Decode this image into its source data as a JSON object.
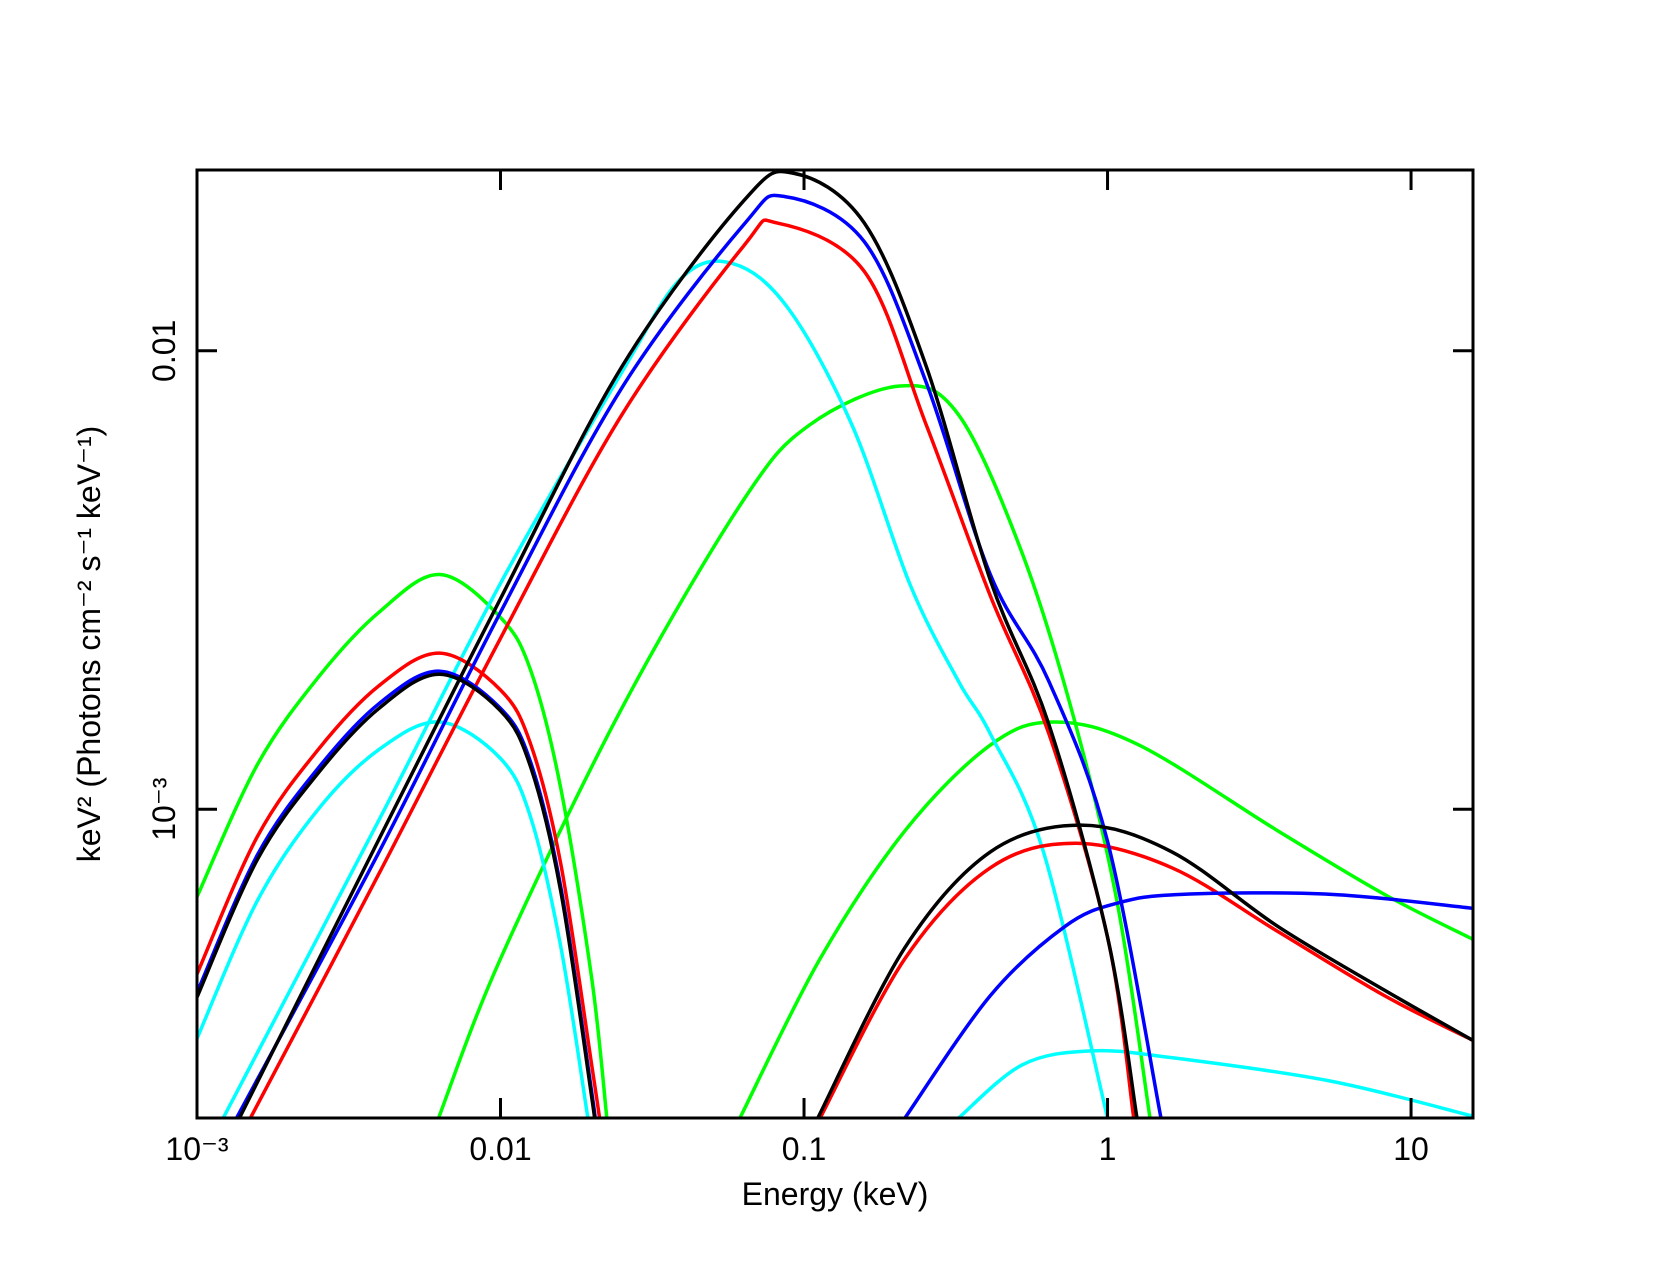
{
  "chart_data": {
    "type": "line",
    "xlabel": "Energy (keV)",
    "ylabel": "keV² (Photons cm⁻² s⁻¹ keV⁻¹)",
    "xscale": "log",
    "yscale": "log",
    "xlim": [
      0.001,
      16
    ],
    "ylim": [
      0.000212,
      0.0248
    ],
    "xticks": [
      {
        "value": 0.001,
        "label": "10⁻³"
      },
      0.01,
      0.1,
      1,
      10
    ],
    "yticks": [
      {
        "value": 0.001,
        "label": "10⁻³"
      },
      0.01
    ],
    "series": [
      {
        "color": "#00ff00",
        "x": [
          0.001,
          0.00158,
          0.00251,
          0.00398,
          0.00631,
          0.01,
          0.0126,
          0.0158,
          0.02,
          0.0224
        ],
        "values": [
          0.000644,
          0.00125,
          0.00194,
          0.00269,
          0.00325,
          0.00262,
          0.002,
          0.00111,
          0.000425,
          0.000212
        ]
      },
      {
        "color": "#00ff00",
        "x": [
          0.00625,
          0.01,
          0.0251,
          0.0631,
          0.104,
          0.207,
          0.323,
          0.524,
          0.785,
          1.08,
          1.38
        ],
        "values": [
          0.000212,
          0.000472,
          0.00166,
          0.00472,
          0.00688,
          0.00838,
          0.00725,
          0.00361,
          0.00153,
          0.000618,
          0.000212
        ]
      },
      {
        "color": "#00ff00",
        "x": [
          0.0615,
          0.113,
          0.215,
          0.411,
          0.668,
          1.27,
          3.64,
          8.17,
          16
        ],
        "values": [
          0.000212,
          0.000472,
          0.000897,
          0.00138,
          0.00155,
          0.00138,
          0.000897,
          0.000652,
          0.00052
        ]
      },
      {
        "color": "#00ffff",
        "x": [
          0.001,
          0.00158,
          0.00251,
          0.00398,
          0.00631,
          0.01,
          0.0126,
          0.0158,
          0.0194
        ],
        "values": [
          0.000316,
          0.000631,
          0.001,
          0.00135,
          0.00155,
          0.00129,
          0.000955,
          0.000501,
          0.000212
        ]
      },
      {
        "color": "#00ffff",
        "x": [
          0.00122,
          0.00398,
          0.01,
          0.0251,
          0.0394,
          0.0582,
          0.0885,
          0.144,
          0.224,
          0.323,
          0.411,
          0.615,
          1
        ],
        "values": [
          0.000212,
          0.000948,
          0.00311,
          0.00898,
          0.0144,
          0.0155,
          0.0124,
          0.00688,
          0.00308,
          0.0019,
          0.00146,
          0.000807,
          0.000212
        ]
      },
      {
        "color": "#00ffff",
        "x": [
          0.323,
          0.524,
          0.885,
          1.63,
          5.46,
          16
        ],
        "values": [
          0.000212,
          0.000277,
          0.000297,
          0.000287,
          0.000255,
          0.000214
        ]
      },
      {
        "color": "#ff0000",
        "x": [
          0.001,
          0.00158,
          0.00251,
          0.00398,
          0.00631,
          0.01,
          0.0126,
          0.0158,
          0.02,
          0.0212
        ],
        "values": [
          0.000437,
          0.000871,
          0.00135,
          0.00186,
          0.00219,
          0.00182,
          0.00138,
          0.000759,
          0.000275,
          0.000212
        ]
      },
      {
        "color": "#ff0000",
        "x": [
          0.0015,
          0.00398,
          0.01,
          0.0251,
          0.0631,
          0.0817,
          0.158,
          0.253,
          0.411,
          0.641,
          1,
          1.22
        ],
        "values": [
          0.000212,
          0.000724,
          0.00236,
          0.00725,
          0.0169,
          0.019,
          0.0149,
          0.00688,
          0.00292,
          0.00146,
          0.000526,
          0.000212
        ]
      },
      {
        "color": "#ff0000",
        "x": [
          0.113,
          0.215,
          0.411,
          0.785,
          1.63,
          3.64,
          8.17,
          16
        ],
        "values": [
          0.000212,
          0.000472,
          0.000745,
          0.000843,
          0.000745,
          0.000541,
          0.000392,
          0.000313
        ]
      },
      {
        "color": "#0000ff",
        "x": [
          0.001,
          0.00158,
          0.00251,
          0.00398,
          0.00631,
          0.01,
          0.0126,
          0.0158,
          0.02,
          0.0204
        ],
        "values": [
          0.000398,
          0.000794,
          0.00123,
          0.0017,
          0.002,
          0.00166,
          0.00126,
          0.000676,
          0.00024,
          0.000212
        ]
      },
      {
        "color": "#0000ff",
        "x": [
          0.00135,
          0.00398,
          0.01,
          0.0251,
          0.0631,
          0.0865,
          0.158,
          0.253,
          0.411,
          0.641,
          1,
          1.5
        ],
        "values": [
          0.000212,
          0.000807,
          0.00269,
          0.0083,
          0.0188,
          0.0217,
          0.0173,
          0.00851,
          0.00325,
          0.0019,
          0.000851,
          0.000212
        ]
      },
      {
        "color": "#0000ff",
        "x": [
          0.215,
          0.411,
          0.724,
          1.08,
          1.76,
          5.46,
          16
        ],
        "values": [
          0.000212,
          0.000392,
          0.000555,
          0.000624,
          0.000652,
          0.000652,
          0.000608
        ]
      },
      {
        "color": "#000000",
        "x": [
          0.001,
          0.00158,
          0.00251,
          0.00398,
          0.00631,
          0.01,
          0.0126,
          0.0158,
          0.02,
          0.0203
        ],
        "values": [
          0.000389,
          0.000776,
          0.0012,
          0.00166,
          0.00197,
          0.00164,
          0.00123,
          0.000661,
          0.000234,
          0.000212
        ]
      },
      {
        "color": "#000000",
        "x": [
          0.00138,
          0.00398,
          0.01,
          0.0251,
          0.0631,
          0.0923,
          0.158,
          0.253,
          0.411,
          0.641,
          1,
          1.25
        ],
        "values": [
          0.000212,
          0.000861,
          0.00288,
          0.00923,
          0.0212,
          0.0244,
          0.019,
          0.00923,
          0.00316,
          0.00153,
          0.000526,
          0.000212
        ]
      },
      {
        "color": "#000000",
        "x": [
          0.111,
          0.215,
          0.411,
          0.817,
          1.63,
          3.64,
          8.17,
          16
        ],
        "values": [
          0.000212,
          0.000499,
          0.000807,
          0.000923,
          0.000807,
          0.000555,
          0.000403,
          0.000313
        ]
      }
    ]
  }
}
